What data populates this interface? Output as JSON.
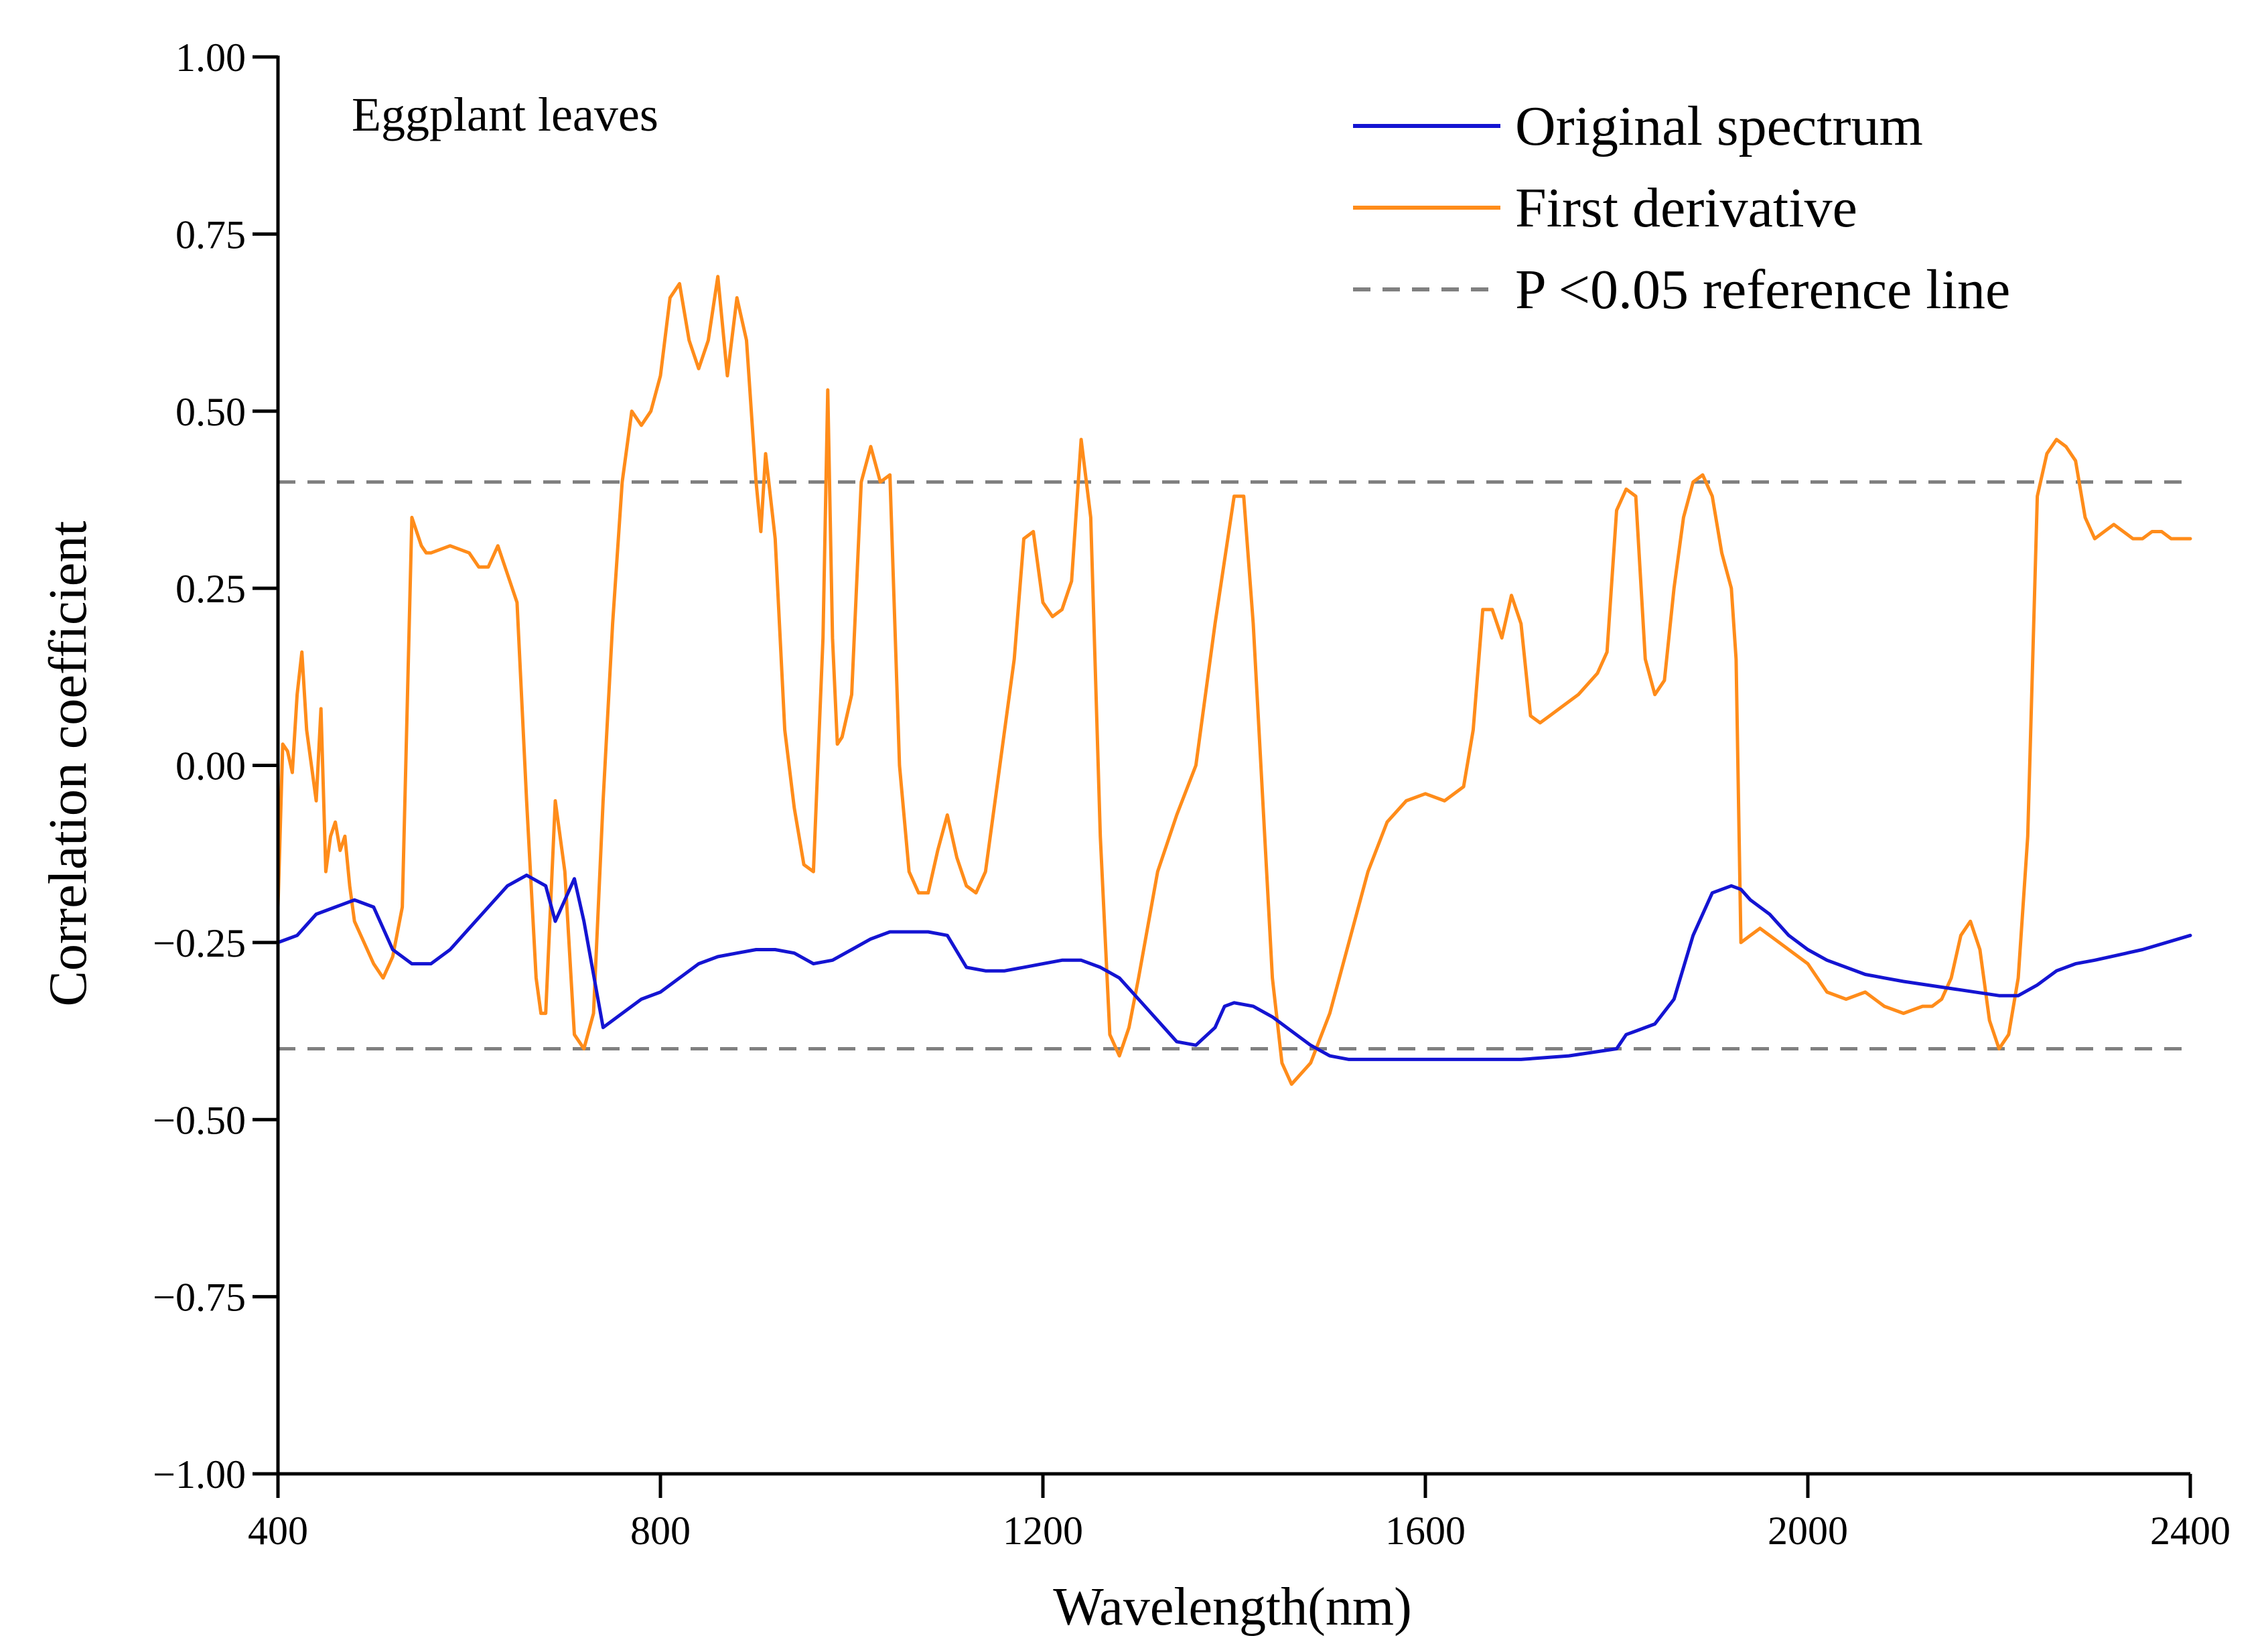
{
  "chart_data": {
    "type": "line",
    "title": "",
    "annotation": "Eggplant leaves",
    "xlabel": "Wavelength(nm)",
    "ylabel": "Correlation coefficient",
    "xlim": [
      400,
      2400
    ],
    "ylim": [
      -1.0,
      1.0
    ],
    "xticks": [
      400,
      800,
      1200,
      1600,
      2000,
      2400
    ],
    "xtick_labels": [
      "400",
      "800",
      "1200",
      "1600",
      "2000",
      "2400"
    ],
    "yticks": [
      1.0,
      0.75,
      0.5,
      0.25,
      0.0,
      -0.25,
      -0.5,
      -0.75,
      -1.0
    ],
    "ytick_labels": [
      "1.00",
      "0.75",
      "0.50",
      "0.25",
      "0.00",
      "−0.25",
      "−0.50",
      "−0.75",
      "−1.00"
    ],
    "grid": false,
    "legend_position": "top-right",
    "series": [
      {
        "name": "Original spectrum",
        "color": "#1414d2",
        "x": [
          400,
          420,
          440,
          460,
          480,
          500,
          520,
          540,
          560,
          580,
          600,
          620,
          640,
          660,
          680,
          690,
          700,
          710,
          720,
          740,
          760,
          780,
          800,
          820,
          840,
          860,
          880,
          900,
          920,
          940,
          960,
          980,
          1000,
          1020,
          1040,
          1060,
          1080,
          1100,
          1120,
          1140,
          1160,
          1180,
          1200,
          1220,
          1240,
          1260,
          1280,
          1300,
          1320,
          1340,
          1360,
          1380,
          1390,
          1400,
          1420,
          1440,
          1460,
          1480,
          1500,
          1520,
          1540,
          1560,
          1600,
          1650,
          1700,
          1750,
          1800,
          1810,
          1820,
          1840,
          1860,
          1880,
          1900,
          1920,
          1930,
          1940,
          1960,
          1980,
          2000,
          2020,
          2040,
          2060,
          2080,
          2100,
          2150,
          2200,
          2220,
          2240,
          2260,
          2280,
          2300,
          2350,
          2400
        ],
        "y": [
          -0.25,
          -0.24,
          -0.21,
          -0.2,
          -0.19,
          -0.2,
          -0.26,
          -0.28,
          -0.28,
          -0.26,
          -0.23,
          -0.2,
          -0.17,
          -0.155,
          -0.17,
          -0.22,
          -0.19,
          -0.16,
          -0.22,
          -0.37,
          -0.35,
          -0.33,
          -0.32,
          -0.3,
          -0.28,
          -0.27,
          -0.265,
          -0.26,
          -0.26,
          -0.265,
          -0.28,
          -0.275,
          -0.26,
          -0.245,
          -0.235,
          -0.235,
          -0.235,
          -0.24,
          -0.285,
          -0.29,
          -0.29,
          -0.285,
          -0.28,
          -0.275,
          -0.275,
          -0.285,
          -0.3,
          -0.33,
          -0.36,
          -0.39,
          -0.395,
          -0.37,
          -0.34,
          -0.335,
          -0.34,
          -0.355,
          -0.375,
          -0.395,
          -0.41,
          -0.415,
          -0.415,
          -0.415,
          -0.415,
          -0.415,
          -0.415,
          -0.41,
          -0.4,
          -0.38,
          -0.375,
          -0.365,
          -0.33,
          -0.24,
          -0.18,
          -0.17,
          -0.175,
          -0.19,
          -0.21,
          -0.24,
          -0.26,
          -0.275,
          -0.285,
          -0.295,
          -0.3,
          -0.305,
          -0.315,
          -0.325,
          -0.325,
          -0.31,
          -0.29,
          -0.28,
          -0.275,
          -0.26,
          -0.24
        ]
      },
      {
        "name": "First derivative",
        "color": "#ff8c1a",
        "x": [
          400,
          405,
          410,
          415,
          420,
          425,
          430,
          440,
          445,
          450,
          455,
          460,
          465,
          470,
          475,
          480,
          490,
          500,
          510,
          520,
          530,
          540,
          550,
          555,
          560,
          580,
          600,
          610,
          620,
          630,
          640,
          650,
          660,
          670,
          675,
          680,
          690,
          700,
          710,
          720,
          730,
          740,
          750,
          760,
          770,
          780,
          790,
          800,
          810,
          820,
          830,
          840,
          850,
          860,
          870,
          880,
          890,
          900,
          905,
          910,
          920,
          930,
          940,
          950,
          960,
          970,
          975,
          980,
          985,
          990,
          1000,
          1010,
          1020,
          1030,
          1040,
          1050,
          1060,
          1070,
          1080,
          1090,
          1100,
          1110,
          1120,
          1130,
          1140,
          1150,
          1160,
          1170,
          1180,
          1190,
          1200,
          1210,
          1220,
          1230,
          1240,
          1250,
          1260,
          1270,
          1280,
          1290,
          1300,
          1320,
          1340,
          1360,
          1380,
          1400,
          1410,
          1420,
          1430,
          1440,
          1450,
          1460,
          1480,
          1500,
          1520,
          1540,
          1560,
          1580,
          1600,
          1620,
          1640,
          1650,
          1660,
          1670,
          1680,
          1690,
          1700,
          1710,
          1720,
          1730,
          1740,
          1760,
          1780,
          1790,
          1800,
          1810,
          1820,
          1830,
          1840,
          1850,
          1860,
          1870,
          1880,
          1890,
          1900,
          1910,
          1920,
          1925,
          1930,
          1940,
          1950,
          1960,
          1980,
          2000,
          2020,
          2040,
          2060,
          2080,
          2100,
          2120,
          2130,
          2140,
          2150,
          2160,
          2170,
          2180,
          2190,
          2200,
          2210,
          2220,
          2230,
          2240,
          2250,
          2260,
          2270,
          2280,
          2290,
          2300,
          2310,
          2320,
          2330,
          2340,
          2350,
          2360,
          2370,
          2380,
          2390,
          2400
        ],
        "y": [
          -0.2,
          0.03,
          0.02,
          -0.01,
          0.1,
          0.16,
          0.05,
          -0.05,
          0.08,
          -0.15,
          -0.1,
          -0.08,
          -0.12,
          -0.1,
          -0.17,
          -0.22,
          -0.25,
          -0.28,
          -0.3,
          -0.27,
          -0.2,
          0.35,
          0.31,
          0.3,
          0.3,
          0.31,
          0.3,
          0.28,
          0.28,
          0.31,
          0.27,
          0.23,
          -0.05,
          -0.3,
          -0.35,
          -0.35,
          -0.05,
          -0.15,
          -0.38,
          -0.4,
          -0.35,
          -0.05,
          0.2,
          0.4,
          0.5,
          0.48,
          0.5,
          0.55,
          0.66,
          0.68,
          0.6,
          0.56,
          0.6,
          0.69,
          0.55,
          0.66,
          0.6,
          0.4,
          0.33,
          0.44,
          0.32,
          0.05,
          -0.06,
          -0.14,
          -0.15,
          0.18,
          0.53,
          0.18,
          0.03,
          0.04,
          0.1,
          0.4,
          0.45,
          0.4,
          0.41,
          0.0,
          -0.15,
          -0.18,
          -0.18,
          -0.12,
          -0.07,
          -0.13,
          -0.17,
          -0.18,
          -0.15,
          -0.05,
          0.05,
          0.15,
          0.32,
          0.33,
          0.23,
          0.21,
          0.22,
          0.26,
          0.46,
          0.35,
          -0.1,
          -0.38,
          -0.41,
          -0.37,
          -0.3,
          -0.15,
          -0.07,
          0.0,
          0.2,
          0.38,
          0.38,
          0.2,
          -0.05,
          -0.3,
          -0.42,
          -0.45,
          -0.42,
          -0.35,
          -0.25,
          -0.15,
          -0.08,
          -0.05,
          -0.04,
          -0.05,
          -0.03,
          0.05,
          0.22,
          0.22,
          0.18,
          0.24,
          0.2,
          0.07,
          0.06,
          0.07,
          0.08,
          0.1,
          0.13,
          0.16,
          0.36,
          0.39,
          0.38,
          0.15,
          0.1,
          0.12,
          0.25,
          0.35,
          0.4,
          0.41,
          0.38,
          0.3,
          0.25,
          0.15,
          -0.25,
          -0.24,
          -0.23,
          -0.24,
          -0.26,
          -0.28,
          -0.32,
          -0.33,
          -0.32,
          -0.34,
          -0.35,
          -0.34,
          -0.34,
          -0.33,
          -0.3,
          -0.24,
          -0.22,
          -0.26,
          -0.36,
          -0.4,
          -0.38,
          -0.3,
          -0.1,
          0.38,
          0.44,
          0.46,
          0.45,
          0.43,
          0.35,
          0.32,
          0.33,
          0.34,
          0.33,
          0.32,
          0.32,
          0.33,
          0.33,
          0.32,
          0.32,
          0.32
        ]
      }
    ],
    "reference_lines": [
      {
        "name": "P <0.05 reference line",
        "color": "#808080",
        "style": "dashed",
        "y": 0.4
      },
      {
        "name": "P <0.05 reference line",
        "color": "#808080",
        "style": "dashed",
        "y": -0.4
      }
    ],
    "legend": [
      {
        "label": "Original spectrum",
        "color": "#1414d2",
        "style": "solid"
      },
      {
        "label": "First derivative",
        "color": "#ff8c1a",
        "style": "solid"
      },
      {
        "label": "P <0.05 reference line",
        "color": "#808080",
        "style": "dashed"
      }
    ]
  }
}
